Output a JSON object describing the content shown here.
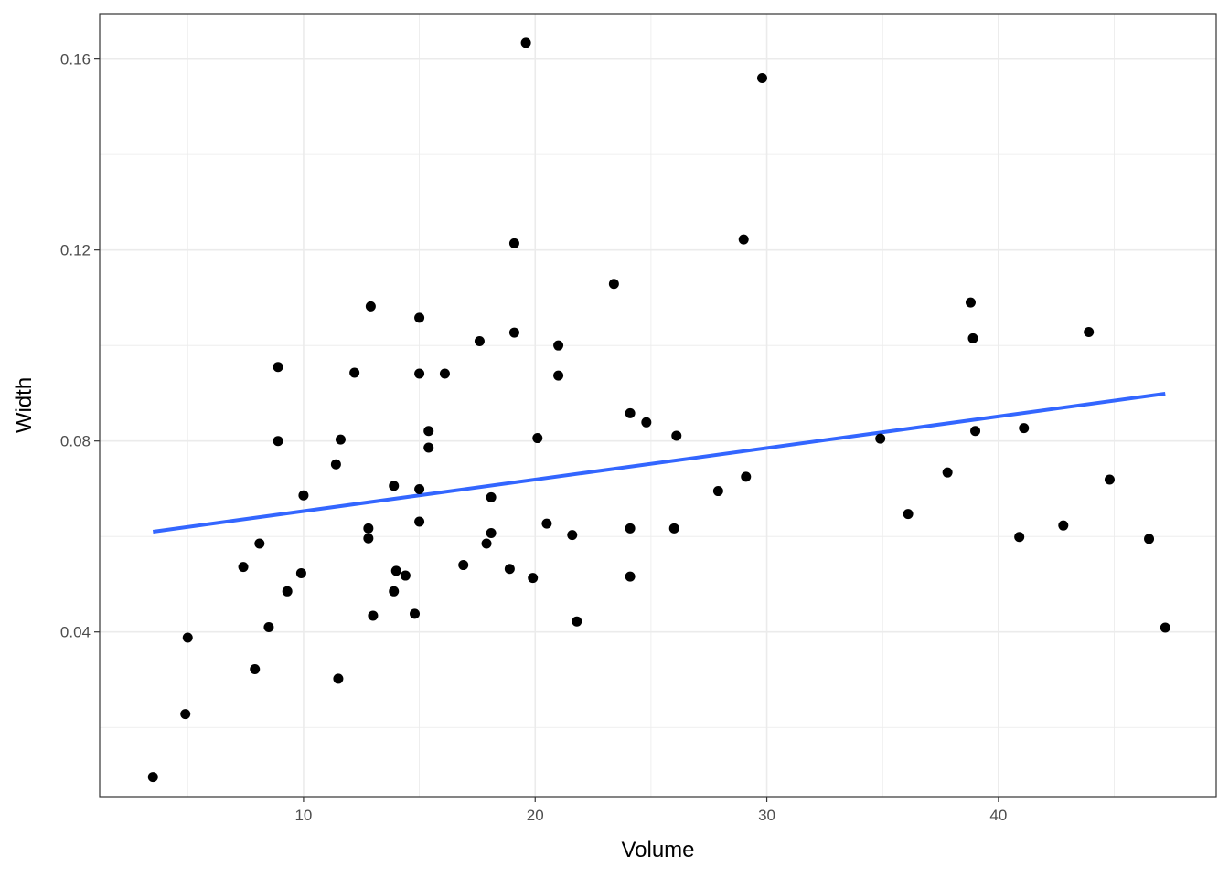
{
  "chart_data": {
    "type": "scatter",
    "title": "",
    "xlabel": "Volume",
    "ylabel": "Width",
    "xlim": [
      1.2,
      49.4
    ],
    "ylim": [
      0.0055,
      0.1695
    ],
    "x_ticks": [
      10,
      20,
      30,
      40
    ],
    "x_tick_labels": [
      "10",
      "20",
      "30",
      "40"
    ],
    "y_ticks": [
      0.04,
      0.08,
      0.12,
      0.16
    ],
    "y_tick_labels": [
      "0.04",
      "0.08",
      "0.12",
      "0.16"
    ],
    "x_minor_gridlines": [
      5,
      15,
      25,
      35,
      45
    ],
    "y_minor_gridlines": [
      0.02,
      0.06,
      0.1,
      0.14
    ],
    "grid": true,
    "legend": "none",
    "colors": {
      "points": "#000000",
      "trend_line": "#3366ff",
      "grid": "#ebebeb",
      "panel_border": "#333333"
    },
    "series": [
      {
        "kind": "points",
        "points": [
          [
            3.5,
            0.0096
          ],
          [
            4.9,
            0.0228
          ],
          [
            5.0,
            0.0388
          ],
          [
            7.4,
            0.0536
          ],
          [
            7.9,
            0.0322
          ],
          [
            8.1,
            0.0585
          ],
          [
            8.5,
            0.041
          ],
          [
            8.9,
            0.08
          ],
          [
            8.9,
            0.0955
          ],
          [
            9.3,
            0.0485
          ],
          [
            9.9,
            0.0523
          ],
          [
            10.0,
            0.0686
          ],
          [
            11.4,
            0.0751
          ],
          [
            11.5,
            0.0302
          ],
          [
            11.6,
            0.0803
          ],
          [
            12.2,
            0.0943
          ],
          [
            12.8,
            0.0617
          ],
          [
            12.8,
            0.0596
          ],
          [
            12.9,
            0.1082
          ],
          [
            13.0,
            0.0434
          ],
          [
            13.9,
            0.0706
          ],
          [
            13.9,
            0.0485
          ],
          [
            14.0,
            0.0528
          ],
          [
            14.4,
            0.0518
          ],
          [
            14.8,
            0.0438
          ],
          [
            15.0,
            0.1058
          ],
          [
            15.0,
            0.0941
          ],
          [
            15.0,
            0.0699
          ],
          [
            15.0,
            0.0631
          ],
          [
            15.4,
            0.0821
          ],
          [
            15.4,
            0.0786
          ],
          [
            16.1,
            0.0941
          ],
          [
            16.9,
            0.054
          ],
          [
            17.6,
            0.1009
          ],
          [
            17.9,
            0.0585
          ],
          [
            18.1,
            0.0682
          ],
          [
            18.1,
            0.0607
          ],
          [
            18.9,
            0.0532
          ],
          [
            19.1,
            0.1214
          ],
          [
            19.1,
            0.1027
          ],
          [
            19.6,
            0.1634
          ],
          [
            19.9,
            0.0513
          ],
          [
            20.1,
            0.0806
          ],
          [
            20.5,
            0.0627
          ],
          [
            21.0,
            0.1
          ],
          [
            21.0,
            0.0937
          ],
          [
            21.6,
            0.0603
          ],
          [
            21.8,
            0.0422
          ],
          [
            23.4,
            0.1129
          ],
          [
            24.1,
            0.0858
          ],
          [
            24.1,
            0.0617
          ],
          [
            24.1,
            0.0516
          ],
          [
            24.8,
            0.0839
          ],
          [
            26.0,
            0.0617
          ],
          [
            26.1,
            0.0811
          ],
          [
            27.9,
            0.0695
          ],
          [
            29.0,
            0.1222
          ],
          [
            29.1,
            0.0725
          ],
          [
            29.8,
            0.156
          ],
          [
            34.9,
            0.0805
          ],
          [
            36.1,
            0.0647
          ],
          [
            37.8,
            0.0734
          ],
          [
            38.8,
            0.109
          ],
          [
            38.9,
            0.1015
          ],
          [
            39.0,
            0.0821
          ],
          [
            40.9,
            0.0599
          ],
          [
            41.1,
            0.0827
          ],
          [
            42.8,
            0.0623
          ],
          [
            43.9,
            0.1028
          ],
          [
            44.8,
            0.0719
          ],
          [
            46.5,
            0.0595
          ],
          [
            47.2,
            0.0409
          ]
        ]
      },
      {
        "kind": "linear_fit",
        "points": [
          [
            3.5,
            0.061
          ],
          [
            47.2,
            0.0899
          ]
        ]
      }
    ]
  }
}
